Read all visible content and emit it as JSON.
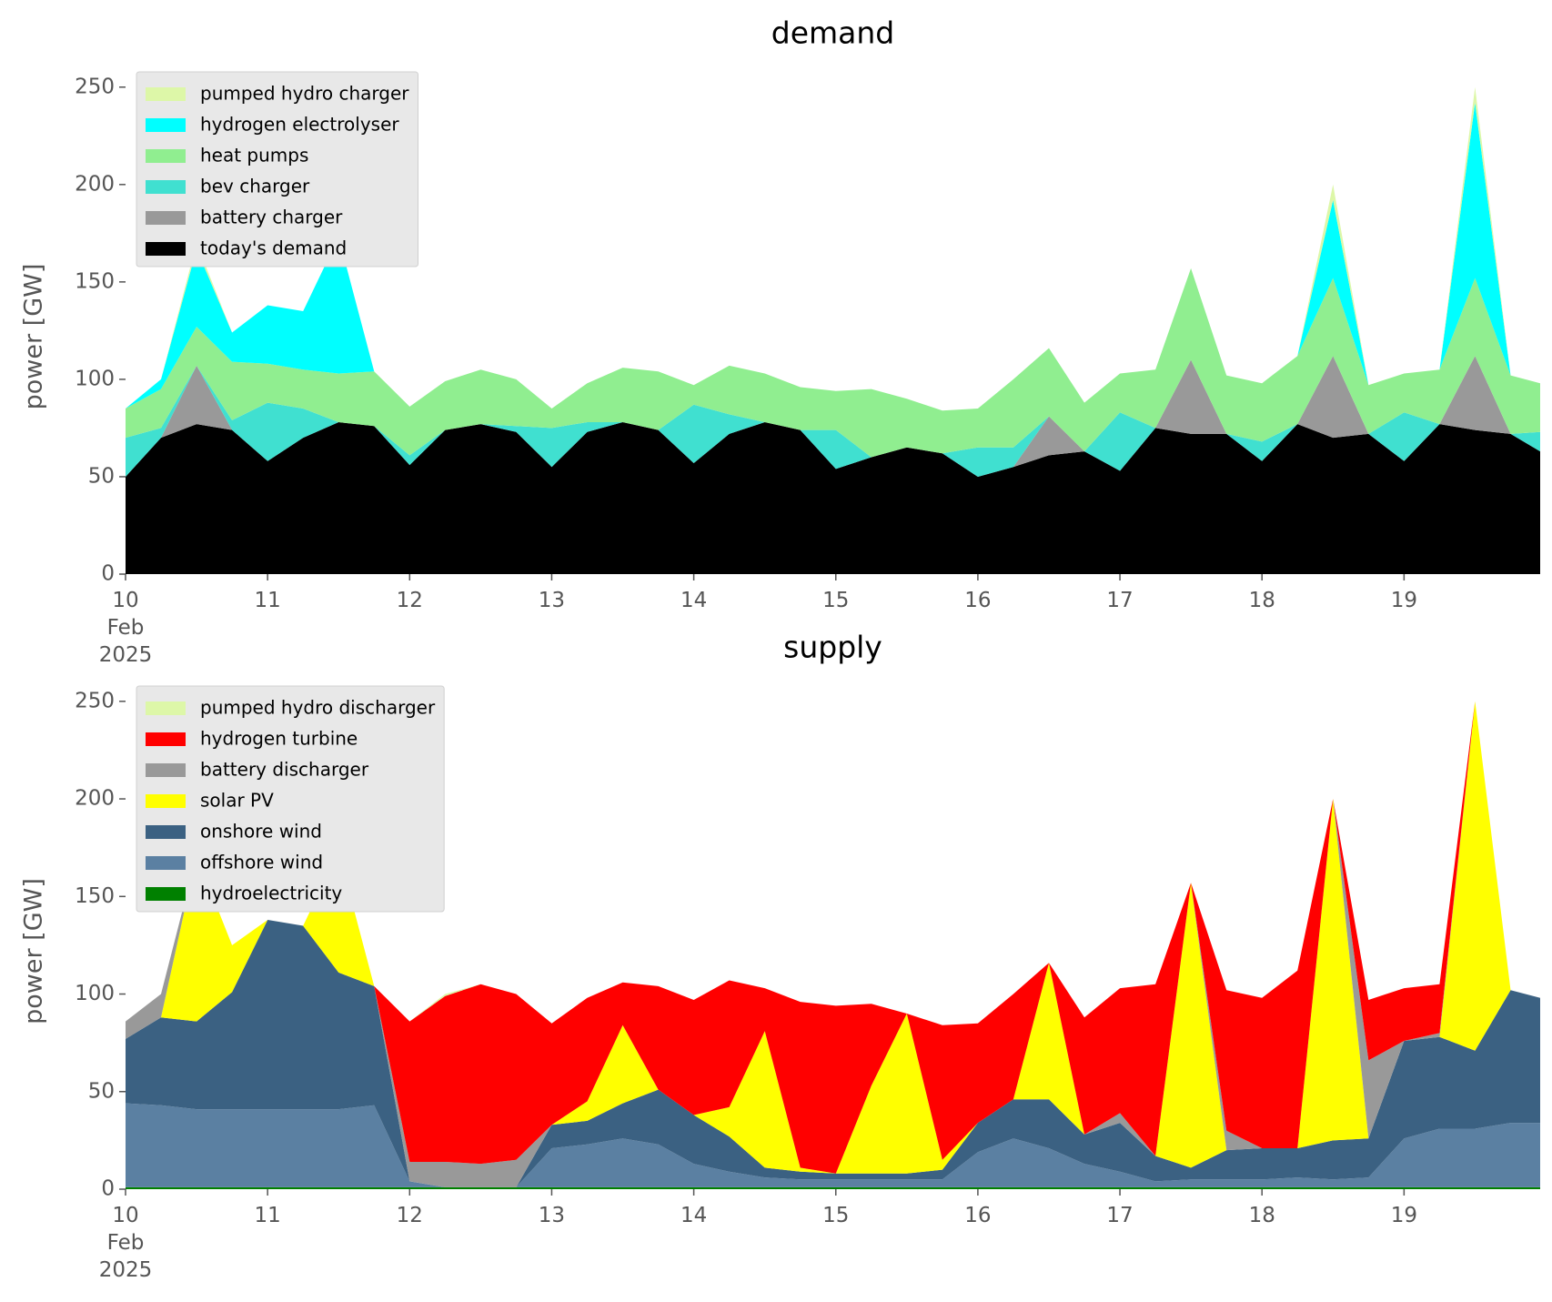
{
  "chart_data": [
    {
      "type": "stacked_area",
      "title": "demand",
      "ylabel": "power [GW]",
      "legend": "upper left",
      "x": [
        "2025-02-10T00:00",
        "2025-02-10T06:00",
        "2025-02-10T12:00",
        "2025-02-10T18:00",
        "2025-02-11T00:00",
        "2025-02-11T06:00",
        "2025-02-11T12:00",
        "2025-02-11T18:00",
        "2025-02-12T00:00",
        "2025-02-12T06:00",
        "2025-02-12T12:00",
        "2025-02-12T18:00",
        "2025-02-13T00:00",
        "2025-02-13T06:00",
        "2025-02-13T12:00",
        "2025-02-13T18:00",
        "2025-02-14T00:00",
        "2025-02-14T06:00",
        "2025-02-14T12:00",
        "2025-02-14T18:00",
        "2025-02-15T00:00",
        "2025-02-15T06:00",
        "2025-02-15T12:00",
        "2025-02-15T18:00",
        "2025-02-16T00:00",
        "2025-02-16T06:00",
        "2025-02-16T12:00",
        "2025-02-16T18:00",
        "2025-02-17T00:00",
        "2025-02-17T06:00",
        "2025-02-17T12:00",
        "2025-02-17T18:00",
        "2025-02-18T00:00",
        "2025-02-18T06:00",
        "2025-02-18T12:00",
        "2025-02-18T18:00",
        "2025-02-19T00:00",
        "2025-02-19T06:00",
        "2025-02-19T12:00",
        "2025-02-19T18:00",
        "2025-02-19T23:00"
      ],
      "xlim": [
        "2025-02-10T00:00",
        "2025-02-19T23:00"
      ],
      "xticks": [
        {
          "value": "2025-02-10T00:00",
          "label": "10\nFeb\n2025"
        },
        {
          "value": "2025-02-11T00:00",
          "label": "11"
        },
        {
          "value": "2025-02-12T00:00",
          "label": "12"
        },
        {
          "value": "2025-02-13T00:00",
          "label": "13"
        },
        {
          "value": "2025-02-14T00:00",
          "label": "14"
        },
        {
          "value": "2025-02-15T00:00",
          "label": "15"
        },
        {
          "value": "2025-02-16T00:00",
          "label": "16"
        },
        {
          "value": "2025-02-17T00:00",
          "label": "17"
        },
        {
          "value": "2025-02-18T00:00",
          "label": "18"
        },
        {
          "value": "2025-02-19T00:00",
          "label": "19"
        }
      ],
      "ylim": [
        0,
        262.5
      ],
      "yticks": [
        0,
        50,
        100,
        150,
        200,
        250
      ],
      "series": [
        {
          "name": "today's demand",
          "color": "#000000",
          "values": [
            50,
            70,
            77,
            74,
            58,
            70,
            78,
            76,
            56,
            74,
            77,
            73,
            55,
            73,
            78,
            74,
            57,
            72,
            78,
            74,
            54,
            60,
            65,
            62,
            50,
            55,
            61,
            63,
            53,
            75,
            72,
            72,
            58,
            77,
            70,
            72,
            58,
            77,
            74,
            72,
            63
          ]
        },
        {
          "name": "battery charger",
          "color": "#999999",
          "values": [
            0,
            0,
            30,
            0,
            0,
            0,
            0,
            0,
            0,
            0,
            0,
            0,
            0,
            0,
            0,
            0,
            0,
            0,
            0,
            0,
            0,
            0,
            0,
            0,
            0,
            0,
            20,
            0,
            0,
            0,
            38,
            0,
            0,
            0,
            42,
            0,
            0,
            0,
            38,
            0,
            0
          ]
        },
        {
          "name": "bev charger",
          "color": "#40e0d0",
          "values": [
            20,
            5,
            0,
            5,
            30,
            15,
            0,
            0,
            5,
            0,
            0,
            3,
            20,
            5,
            0,
            0,
            30,
            10,
            0,
            0,
            20,
            0,
            0,
            0,
            15,
            10,
            0,
            0,
            30,
            0,
            0,
            0,
            10,
            0,
            0,
            0,
            25,
            0,
            0,
            0,
            10
          ]
        },
        {
          "name": "heat pumps",
          "color": "#90ee90",
          "values": [
            15,
            20,
            20,
            30,
            20,
            20,
            25,
            28,
            25,
            25,
            28,
            24,
            10,
            20,
            28,
            30,
            10,
            25,
            25,
            22,
            20,
            35,
            25,
            22,
            20,
            35,
            35,
            25,
            20,
            30,
            47,
            30,
            30,
            35,
            40,
            25,
            20,
            28,
            40,
            30,
            25
          ]
        },
        {
          "name": "hydrogen electrolyser",
          "color": "#00ffff",
          "values": [
            0,
            5,
            40,
            15,
            30,
            30,
            70,
            0,
            0,
            0,
            0,
            0,
            0,
            0,
            0,
            0,
            0,
            0,
            0,
            0,
            0,
            0,
            0,
            0,
            0,
            0,
            0,
            0,
            0,
            0,
            0,
            0,
            0,
            0,
            40,
            0,
            0,
            0,
            90,
            0,
            0
          ]
        },
        {
          "name": "pumped hydro charger",
          "color": "#ddf7a8",
          "values": [
            0,
            0,
            3,
            0,
            0,
            0,
            0,
            0,
            0,
            0,
            0,
            0,
            0,
            0,
            0,
            0,
            0,
            0,
            0,
            0,
            0,
            0,
            0,
            0,
            0,
            0,
            0,
            0,
            0,
            0,
            0,
            0,
            0,
            0,
            8,
            0,
            0,
            0,
            8,
            0,
            0
          ]
        }
      ]
    },
    {
      "type": "stacked_area",
      "title": "supply",
      "ylabel": "power [GW]",
      "legend": "upper left",
      "x": [
        "2025-02-10T00:00",
        "2025-02-10T06:00",
        "2025-02-10T12:00",
        "2025-02-10T18:00",
        "2025-02-11T00:00",
        "2025-02-11T06:00",
        "2025-02-11T12:00",
        "2025-02-11T18:00",
        "2025-02-12T00:00",
        "2025-02-12T06:00",
        "2025-02-12T12:00",
        "2025-02-12T18:00",
        "2025-02-13T00:00",
        "2025-02-13T06:00",
        "2025-02-13T12:00",
        "2025-02-13T18:00",
        "2025-02-14T00:00",
        "2025-02-14T06:00",
        "2025-02-14T12:00",
        "2025-02-14T18:00",
        "2025-02-15T00:00",
        "2025-02-15T06:00",
        "2025-02-15T12:00",
        "2025-02-15T18:00",
        "2025-02-16T00:00",
        "2025-02-16T06:00",
        "2025-02-16T12:00",
        "2025-02-16T18:00",
        "2025-02-17T00:00",
        "2025-02-17T06:00",
        "2025-02-17T12:00",
        "2025-02-17T18:00",
        "2025-02-18T00:00",
        "2025-02-18T06:00",
        "2025-02-18T12:00",
        "2025-02-18T18:00",
        "2025-02-19T00:00",
        "2025-02-19T06:00",
        "2025-02-19T12:00",
        "2025-02-19T18:00",
        "2025-02-19T23:00"
      ],
      "xlim": [
        "2025-02-10T00:00",
        "2025-02-19T23:00"
      ],
      "xticks": [
        {
          "value": "2025-02-10T00:00",
          "label": "10\nFeb\n2025"
        },
        {
          "value": "2025-02-11T00:00",
          "label": "11"
        },
        {
          "value": "2025-02-12T00:00",
          "label": "12"
        },
        {
          "value": "2025-02-13T00:00",
          "label": "13"
        },
        {
          "value": "2025-02-14T00:00",
          "label": "14"
        },
        {
          "value": "2025-02-15T00:00",
          "label": "15"
        },
        {
          "value": "2025-02-16T00:00",
          "label": "16"
        },
        {
          "value": "2025-02-17T00:00",
          "label": "17"
        },
        {
          "value": "2025-02-18T00:00",
          "label": "18"
        },
        {
          "value": "2025-02-19T00:00",
          "label": "19"
        }
      ],
      "ylim": [
        0,
        262.5
      ],
      "yticks": [
        0,
        50,
        100,
        150,
        200,
        250
      ],
      "series": [
        {
          "name": "hydroelectricity",
          "color": "#008000",
          "values": [
            1,
            1,
            1,
            1,
            1,
            1,
            1,
            1,
            1,
            1,
            1,
            1,
            1,
            1,
            1,
            1,
            1,
            1,
            1,
            1,
            1,
            1,
            1,
            1,
            1,
            1,
            1,
            1,
            1,
            1,
            1,
            1,
            1,
            1,
            1,
            1,
            1,
            1,
            1,
            1,
            1
          ]
        },
        {
          "name": "offshore wind",
          "color": "#5b80a2",
          "values": [
            43,
            42,
            40,
            40,
            40,
            40,
            40,
            42,
            3,
            0,
            0,
            0,
            20,
            22,
            25,
            22,
            12,
            8,
            5,
            4,
            4,
            4,
            4,
            4,
            18,
            25,
            20,
            12,
            8,
            3,
            4,
            4,
            4,
            5,
            4,
            5,
            25,
            30,
            30,
            33,
            33
          ]
        },
        {
          "name": "onshore wind",
          "color": "#3b6182",
          "values": [
            33,
            45,
            45,
            60,
            97,
            94,
            70,
            61,
            0,
            0,
            0,
            0,
            12,
            12,
            18,
            28,
            25,
            18,
            5,
            4,
            3,
            3,
            3,
            5,
            15,
            20,
            25,
            15,
            25,
            13,
            6,
            15,
            16,
            15,
            20,
            20,
            50,
            47,
            40,
            68,
            64
          ]
        },
        {
          "name": "solar PV",
          "color": "#ffff00",
          "values": [
            0,
            0,
            85,
            24,
            0,
            0,
            62,
            0,
            0,
            0,
            0,
            0,
            0,
            10,
            40,
            0,
            0,
            15,
            70,
            2,
            0,
            45,
            82,
            5,
            0,
            0,
            70,
            0,
            0,
            0,
            146,
            0,
            0,
            0,
            175,
            0,
            0,
            0,
            179,
            0,
            0
          ]
        },
        {
          "name": "battery discharger",
          "color": "#999999",
          "values": [
            9,
            12,
            0,
            0,
            0,
            0,
            0,
            0,
            10,
            13,
            12,
            14,
            0,
            0,
            0,
            0,
            0,
            0,
            0,
            0,
            0,
            0,
            0,
            0,
            0,
            0,
            0,
            0,
            5,
            0,
            0,
            10,
            0,
            0,
            0,
            40,
            0,
            2,
            0,
            0,
            0
          ]
        },
        {
          "name": "hydrogen turbine",
          "color": "#ff0000",
          "values": [
            0,
            0,
            0,
            0,
            0,
            0,
            0,
            0,
            72,
            85,
            92,
            85,
            52,
            53,
            22,
            53,
            59,
            65,
            22,
            85,
            86,
            42,
            0,
            69,
            51,
            54,
            0,
            60,
            64,
            88,
            0,
            72,
            77,
            91,
            0,
            31,
            27,
            25,
            0,
            0,
            0
          ]
        },
        {
          "name": "pumped hydro discharger",
          "color": "#ddf7a8",
          "values": [
            0,
            0,
            0,
            0,
            0,
            0,
            0,
            0,
            0,
            1,
            0,
            0,
            0,
            0,
            0,
            0,
            0,
            0,
            0,
            0,
            0,
            0,
            0,
            0,
            0,
            0,
            0,
            0,
            0,
            0,
            0,
            0,
            0,
            0,
            0,
            0,
            0,
            0,
            0,
            0,
            0
          ]
        }
      ]
    }
  ]
}
